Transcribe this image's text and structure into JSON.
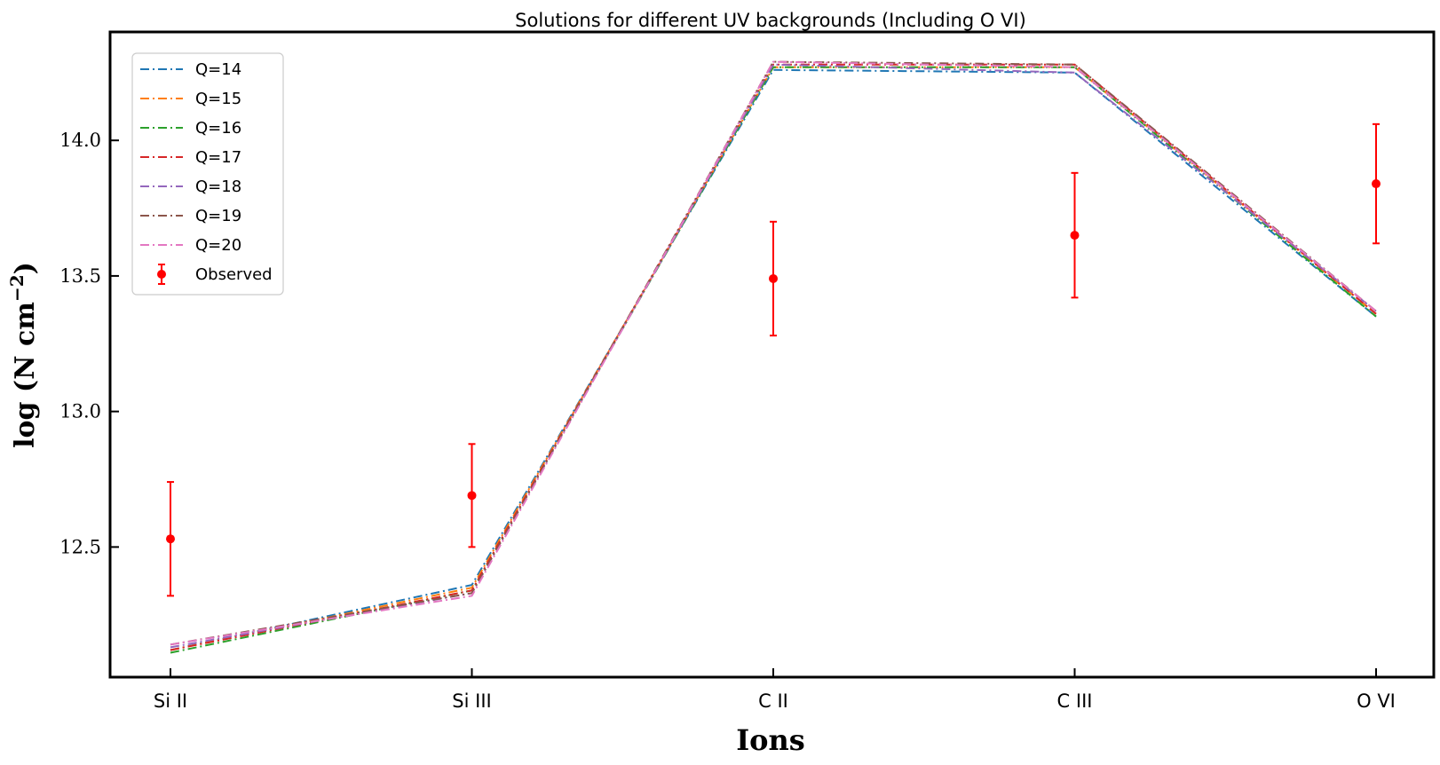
{
  "chart_data": {
    "type": "line",
    "title": "Solutions for different UV backgrounds (Including O VI)",
    "xlabel": "Ions",
    "ylabel_text": "log (N cm",
    "ylabel_superscript": "−2",
    "ylabel_close": ")",
    "categories": [
      "Si II",
      "Si III",
      "C II",
      "C III",
      "O VI"
    ],
    "yticks": [
      "12.5",
      "13.0",
      "13.5",
      "14.0"
    ],
    "ylim": [
      12.02,
      14.4
    ],
    "legend_position": "upper-left",
    "series": [
      {
        "name": "Q=14",
        "color": "#1f77b4",
        "values": [
          12.12,
          12.36,
          14.26,
          14.25,
          13.35
        ]
      },
      {
        "name": "Q=15",
        "color": "#ff7f0e",
        "values": [
          12.12,
          12.35,
          14.27,
          14.27,
          13.36
        ]
      },
      {
        "name": "Q=16",
        "color": "#2ca02c",
        "values": [
          12.11,
          12.34,
          14.27,
          14.27,
          13.35
        ]
      },
      {
        "name": "Q=17",
        "color": "#d62728",
        "values": [
          12.12,
          12.34,
          14.28,
          14.28,
          13.36
        ]
      },
      {
        "name": "Q=18",
        "color": "#9467bd",
        "values": [
          12.13,
          12.33,
          14.28,
          14.25,
          13.37
        ]
      },
      {
        "name": "Q=19",
        "color": "#8c564b",
        "values": [
          12.14,
          12.33,
          14.29,
          14.28,
          13.37
        ]
      },
      {
        "name": "Q=20",
        "color": "#e377c2",
        "values": [
          12.14,
          12.32,
          14.29,
          14.27,
          13.37
        ]
      }
    ],
    "observed": {
      "name": "Observed",
      "color": "#ff0000",
      "values": [
        12.53,
        12.69,
        13.49,
        13.65,
        13.84
      ],
      "error": [
        0.21,
        0.19,
        0.21,
        0.23,
        0.22
      ]
    }
  }
}
